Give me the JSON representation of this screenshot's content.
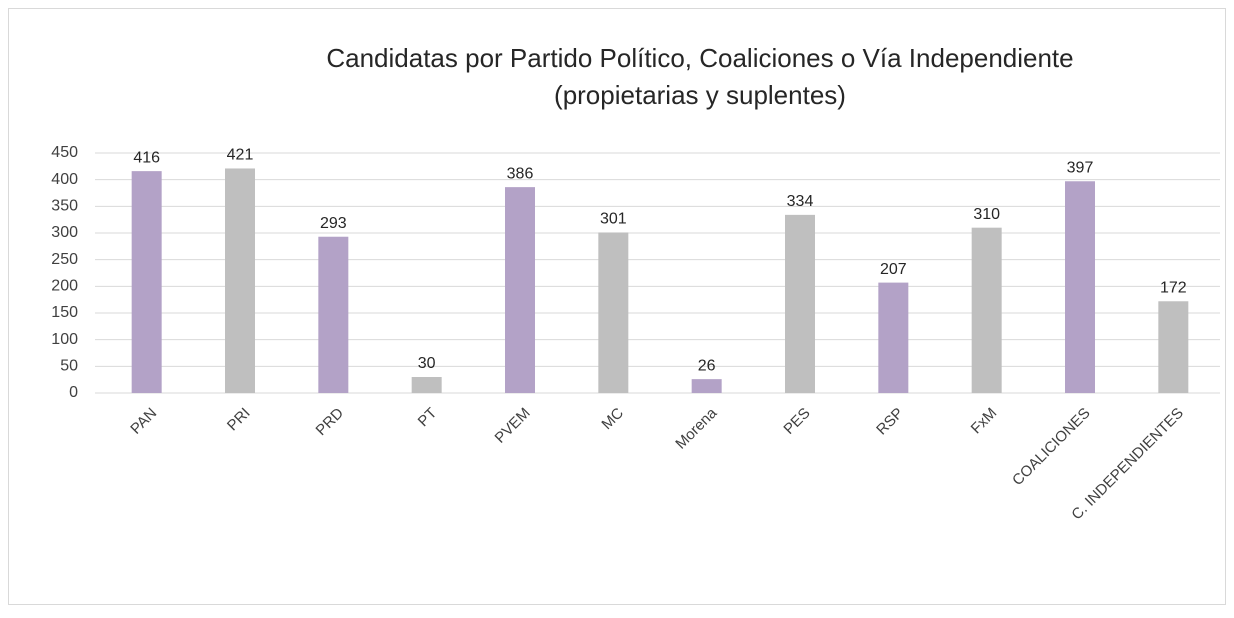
{
  "chart_data": {
    "type": "bar",
    "title": "Candidatas por Partido Político, Coaliciones o Vía Independiente",
    "subtitle": "(propietarias y suplentes)",
    "categories": [
      "PAN",
      "PRI",
      "PRD",
      "PT",
      "PVEM",
      "MC",
      "Morena",
      "PES",
      "RSP",
      "FxM",
      "COALICIONES",
      "C. INDEPENDIENTES"
    ],
    "values": [
      416,
      421,
      293,
      30,
      386,
      301,
      26,
      334,
      207,
      310,
      397,
      172
    ],
    "colors": [
      "#b3a2c7",
      "#bfbfbf",
      "#b3a2c7",
      "#bfbfbf",
      "#b3a2c7",
      "#bfbfbf",
      "#b3a2c7",
      "#bfbfbf",
      "#b3a2c7",
      "#bfbfbf",
      "#b3a2c7",
      "#bfbfbf"
    ],
    "ylim": [
      0,
      450
    ],
    "yticks": [
      0,
      50,
      100,
      150,
      200,
      250,
      300,
      350,
      400,
      450
    ],
    "grid": true
  }
}
